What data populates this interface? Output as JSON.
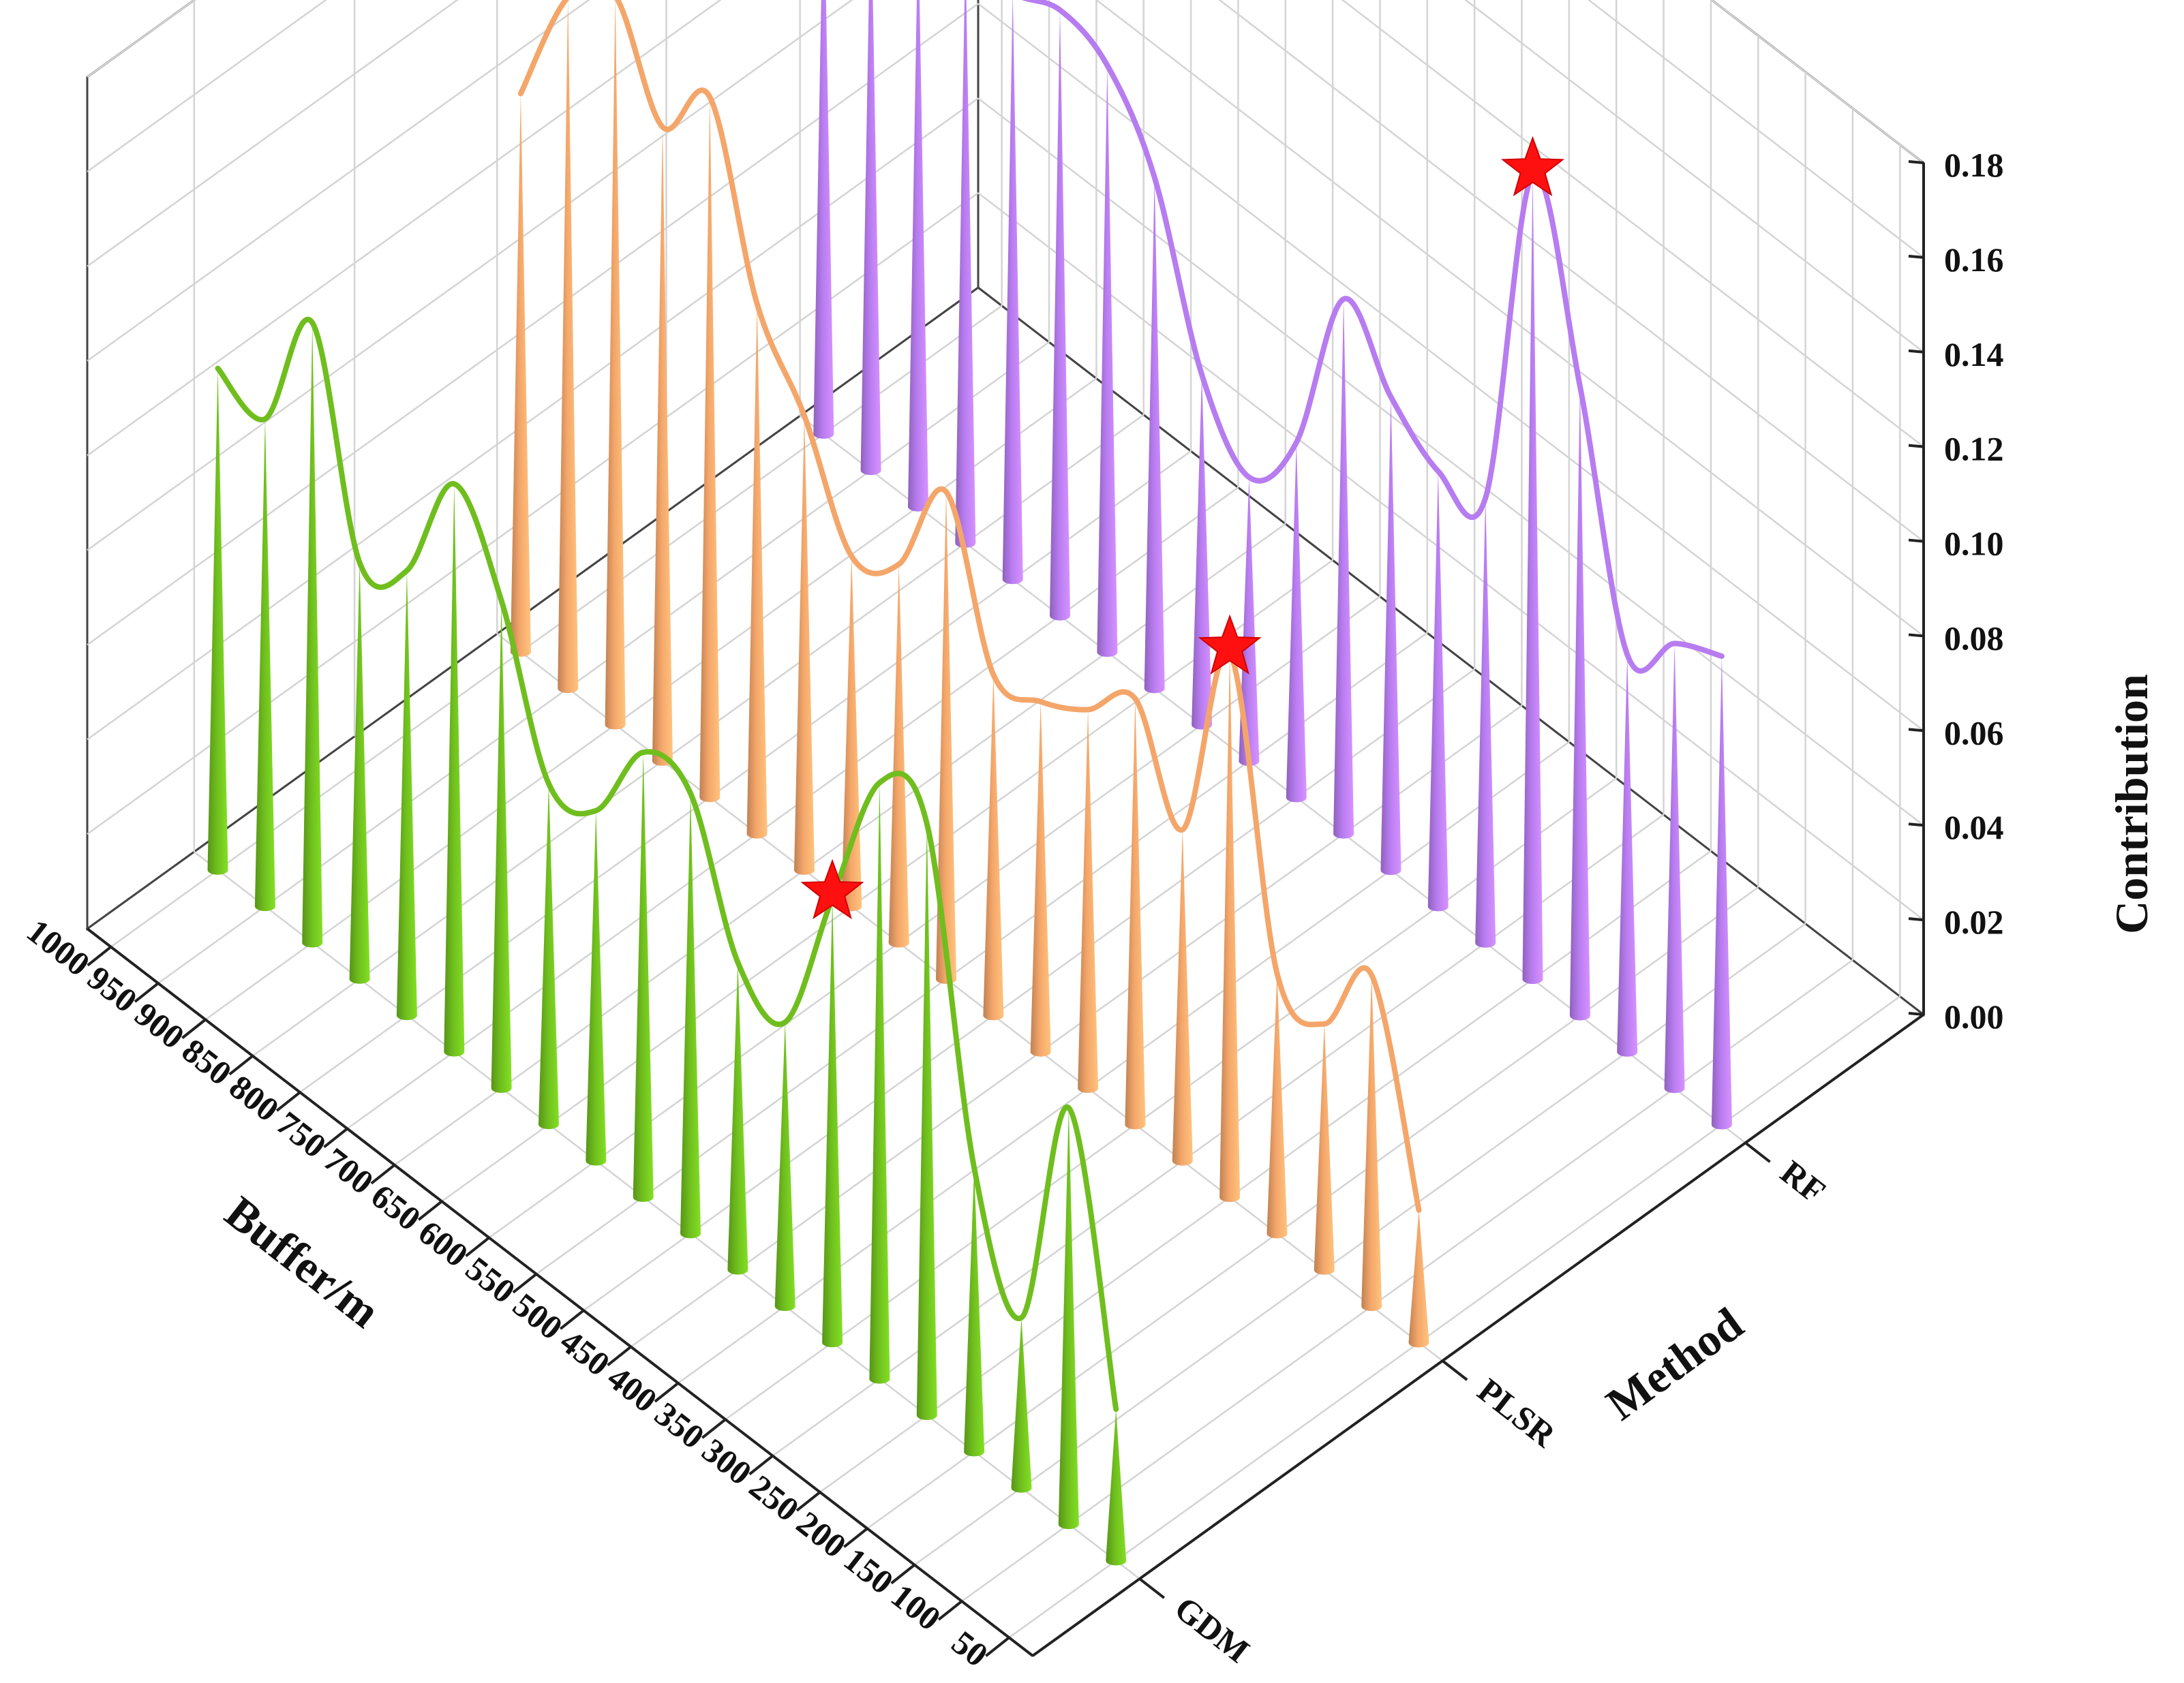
{
  "chart_data": {
    "type": "3d-cone",
    "title": "",
    "xlabel": "Buffer/m",
    "ylabel": "Method",
    "zlabel": "Contribution",
    "x": [
      1000,
      950,
      900,
      850,
      800,
      750,
      700,
      650,
      600,
      550,
      500,
      450,
      400,
      350,
      300,
      250,
      200,
      150,
      100,
      50
    ],
    "x_ticks": [
      "1000",
      "950",
      "900",
      "850",
      "800",
      "750",
      "700",
      "650",
      "600",
      "550",
      "500",
      "450",
      "400",
      "350",
      "300",
      "250",
      "200",
      "150",
      "100",
      "50"
    ],
    "categories": [
      "GDM",
      "PLSR",
      "RF"
    ],
    "zlim": [
      0,
      0.18
    ],
    "z_ticks": [
      "0.00",
      "0.02",
      "0.04",
      "0.06",
      "0.08",
      "0.10",
      "0.12",
      "0.14",
      "0.16",
      "0.18"
    ],
    "grid": true,
    "series": [
      {
        "category": "GDM",
        "color": "#6fbe1e",
        "values": [
          0.106,
          0.103,
          0.131,
          0.088,
          0.094,
          0.12,
          0.103,
          0.072,
          0.074,
          0.094,
          0.093,
          0.065,
          0.06,
          0.094,
          0.126,
          0.125,
          0.06,
          0.036,
          0.088,
          0.032
        ]
      },
      {
        "category": "PLSR",
        "color": "#f4a66a",
        "values": [
          0.118,
          0.146,
          0.154,
          0.134,
          0.148,
          0.112,
          0.096,
          0.074,
          0.08,
          0.103,
          0.072,
          0.074,
          0.08,
          0.09,
          0.07,
          0.115,
          0.055,
          0.052,
          0.07,
          0.028
        ]
      },
      {
        "category": "RF",
        "color": "#b77cf0",
        "values": [
          0.12,
          0.124,
          0.124,
          0.126,
          0.124,
          0.128,
          0.124,
          0.108,
          0.074,
          0.06,
          0.075,
          0.113,
          0.1,
          0.092,
          0.094,
          0.17,
          0.133,
          0.084,
          0.094,
          0.099
        ]
      }
    ],
    "highlights": [
      {
        "category": "GDM",
        "x": 350,
        "marker": "red-star"
      },
      {
        "category": "PLSR",
        "x": 250,
        "marker": "red-star"
      },
      {
        "category": "RF",
        "x": 250,
        "marker": "red-star"
      }
    ]
  }
}
